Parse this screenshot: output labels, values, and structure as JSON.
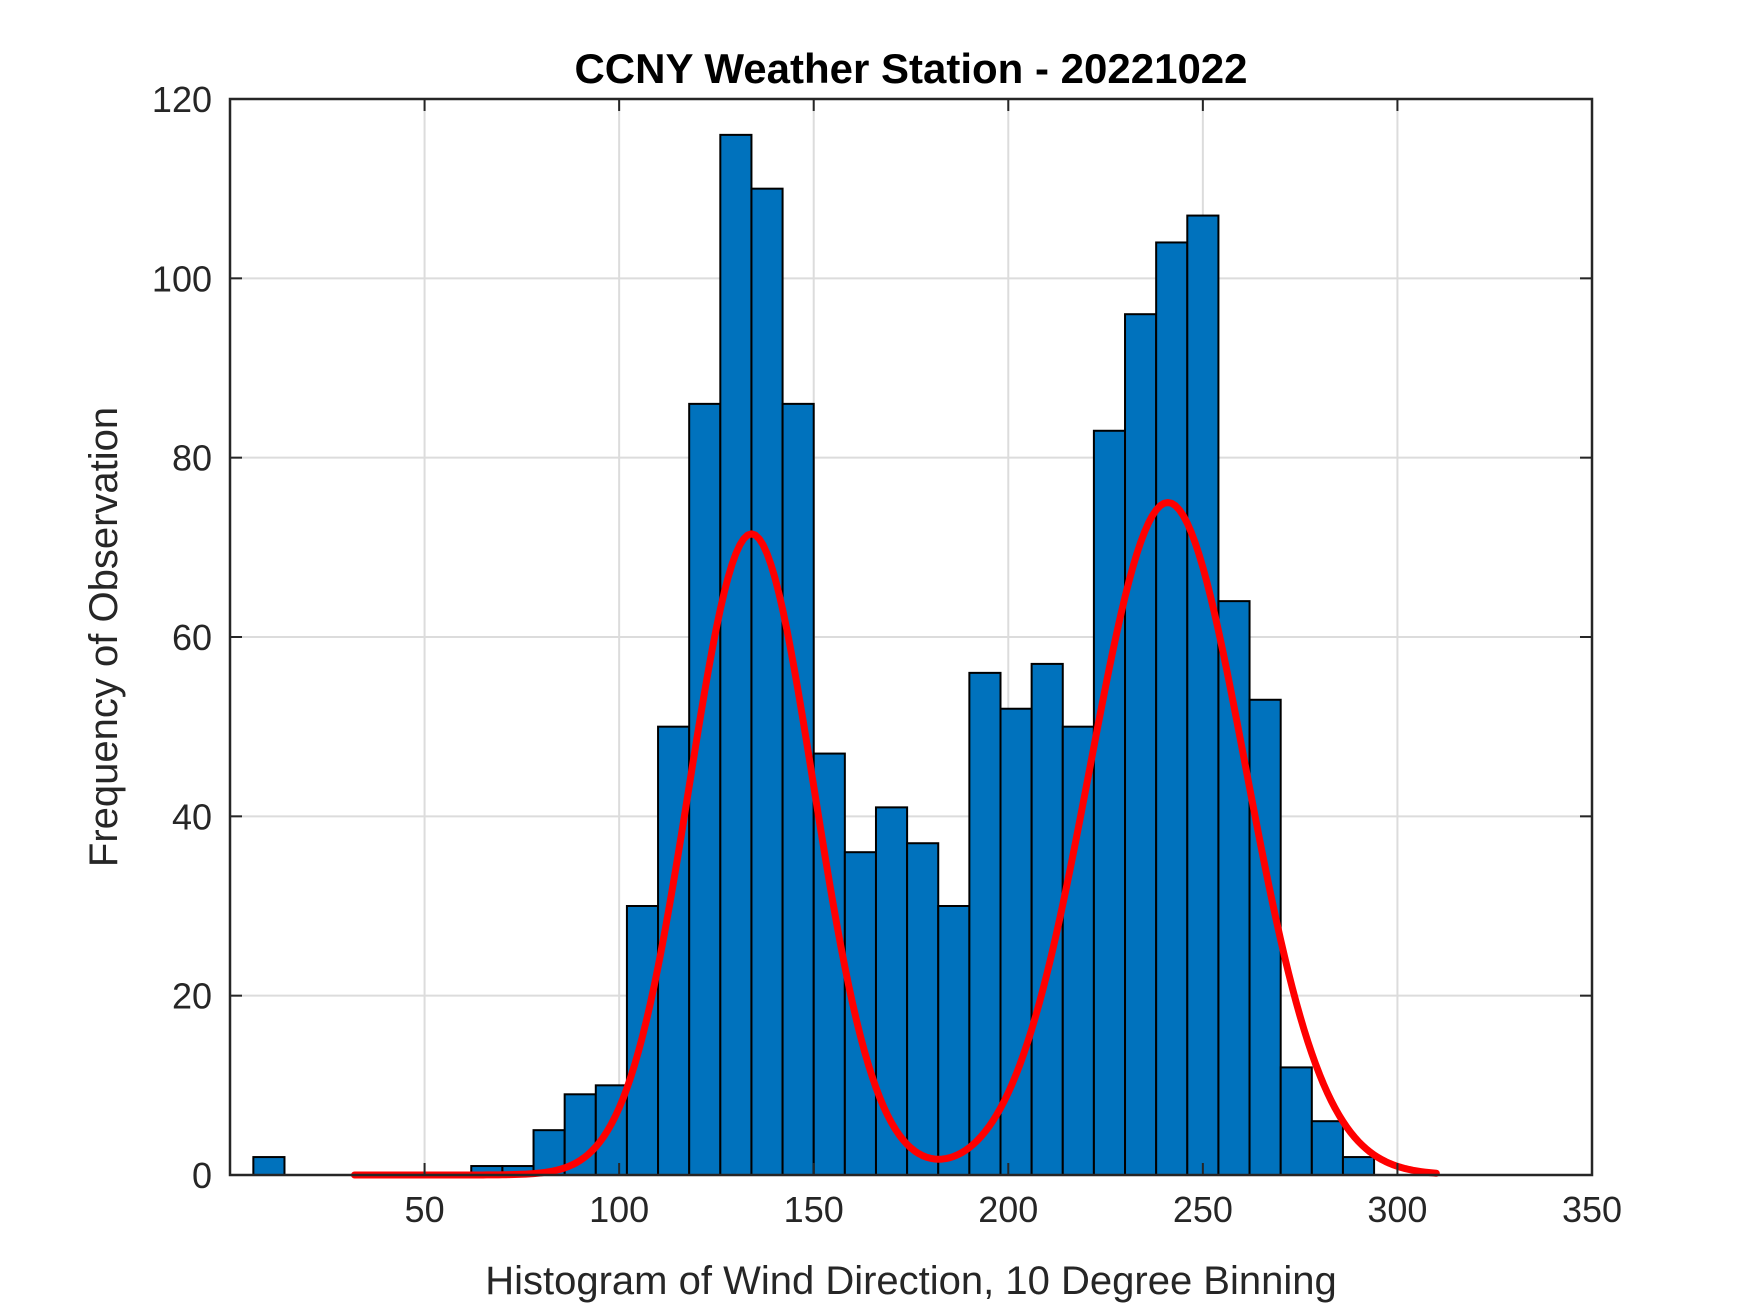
{
  "chart_data": {
    "type": "bar",
    "title": "CCNY Weather Station - 20221022",
    "xlabel": "Histogram of Wind Direction, 10 Degree Binning",
    "ylabel": "Frequency of Observation",
    "xlim": [
      0,
      350
    ],
    "ylim": [
      0,
      120
    ],
    "xticks": [
      50,
      100,
      150,
      200,
      250,
      300,
      350
    ],
    "yticks": [
      0,
      20,
      40,
      60,
      80,
      100,
      120
    ],
    "grid": true,
    "bin_width": 8,
    "bins": [
      {
        "start": 6,
        "value": 2
      },
      {
        "start": 62,
        "value": 1
      },
      {
        "start": 70,
        "value": 1
      },
      {
        "start": 78,
        "value": 5
      },
      {
        "start": 86,
        "value": 9
      },
      {
        "start": 94,
        "value": 10
      },
      {
        "start": 102,
        "value": 30
      },
      {
        "start": 110,
        "value": 50
      },
      {
        "start": 118,
        "value": 86
      },
      {
        "start": 126,
        "value": 116
      },
      {
        "start": 134,
        "value": 110
      },
      {
        "start": 142,
        "value": 86
      },
      {
        "start": 150,
        "value": 47
      },
      {
        "start": 158,
        "value": 36
      },
      {
        "start": 166,
        "value": 41
      },
      {
        "start": 174,
        "value": 37
      },
      {
        "start": 182,
        "value": 30
      },
      {
        "start": 190,
        "value": 56
      },
      {
        "start": 198,
        "value": 52
      },
      {
        "start": 206,
        "value": 57
      },
      {
        "start": 214,
        "value": 50
      },
      {
        "start": 222,
        "value": 83
      },
      {
        "start": 230,
        "value": 96
      },
      {
        "start": 238,
        "value": 104
      },
      {
        "start": 246,
        "value": 107
      },
      {
        "start": 254,
        "value": 64
      },
      {
        "start": 262,
        "value": 53
      },
      {
        "start": 270,
        "value": 12
      },
      {
        "start": 278,
        "value": 6
      },
      {
        "start": 286,
        "value": 2
      }
    ],
    "fit_curve": {
      "name": "Gaussian mixture fit",
      "x_range": [
        32,
        310
      ],
      "components": [
        {
          "mean": 134,
          "sigma": 16,
          "amplitude": 71.5
        },
        {
          "mean": 241,
          "sigma": 20,
          "amplitude": 75
        }
      ]
    },
    "colors": {
      "bar": "#0072BD",
      "fit": "#FF0000"
    }
  }
}
